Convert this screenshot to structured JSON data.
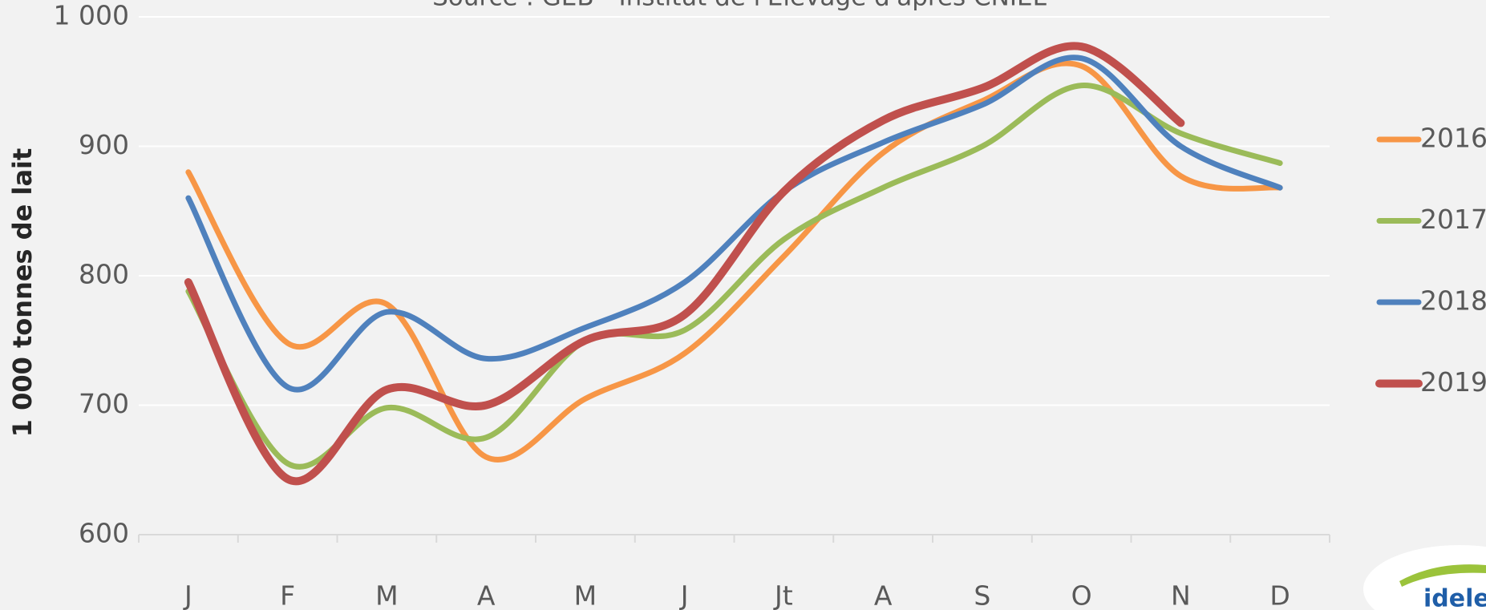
{
  "chart_data": {
    "type": "line",
    "title": "Source : GEB - Institut de l'Elevage d'après CNIEL",
    "y_label": "1 000 tonnes de lait",
    "categories": [
      "J",
      "F",
      "M",
      "A",
      "M",
      "J",
      "Jt",
      "A",
      "S",
      "O",
      "N",
      "D"
    ],
    "series": [
      {
        "name": "2016",
        "color": "#f79646",
        "values": [
          880,
          748,
          778,
          660,
          705,
          740,
          815,
          895,
          935,
          962,
          877,
          868
        ]
      },
      {
        "name": "2017",
        "color": "#9bbb59",
        "values": [
          788,
          655,
          698,
          675,
          750,
          758,
          828,
          868,
          900,
          947,
          910,
          887
        ]
      },
      {
        "name": "2018",
        "color": "#4f81bd",
        "values": [
          860,
          714,
          772,
          736,
          760,
          795,
          865,
          903,
          932,
          968,
          900,
          868
        ]
      },
      {
        "name": "2019",
        "color": "#c0504d",
        "values": [
          795,
          643,
          712,
          700,
          750,
          770,
          865,
          920,
          945,
          977,
          918,
          null
        ]
      }
    ],
    "ylim": [
      600,
      1000
    ],
    "yticks": [
      600,
      700,
      800,
      900,
      {
        "value": 1000,
        "label": "1 000"
      }
    ],
    "grid": true,
    "legend": "right",
    "logo": "idele"
  }
}
